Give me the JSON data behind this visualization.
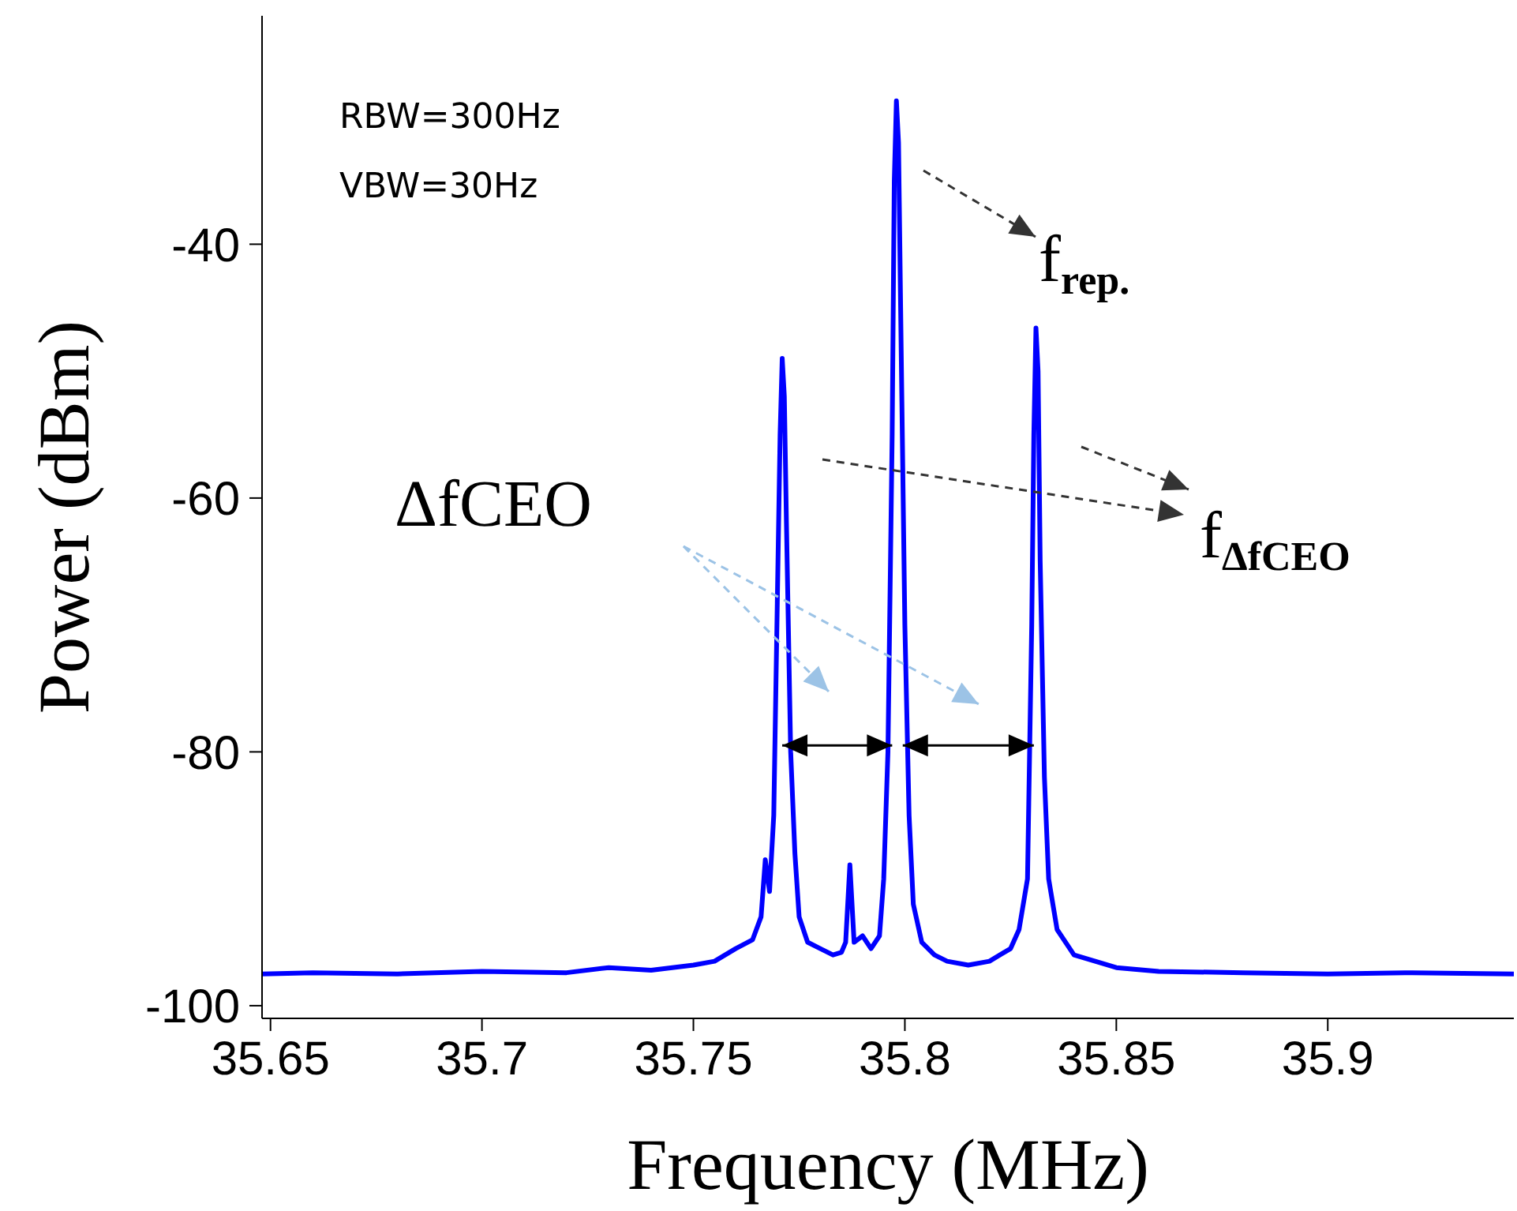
{
  "chart_data": {
    "type": "line",
    "xlabel": "Frequency (MHz)",
    "ylabel": "Power (dBm)",
    "x": [
      35.648,
      35.66,
      35.68,
      35.7,
      35.72,
      35.73,
      35.74,
      35.75,
      35.755,
      35.76,
      35.764,
      35.766,
      35.767,
      35.768,
      35.769,
      35.77,
      35.7705,
      35.771,
      35.7715,
      35.772,
      35.773,
      35.774,
      35.775,
      35.777,
      35.78,
      35.783,
      35.785,
      35.786,
      35.787,
      35.788,
      35.79,
      35.792,
      35.794,
      35.795,
      35.796,
      35.797,
      35.7975,
      35.798,
      35.7985,
      35.799,
      35.8,
      35.801,
      35.802,
      35.804,
      35.807,
      35.81,
      35.815,
      35.82,
      35.825,
      35.827,
      35.829,
      35.83,
      35.8305,
      35.831,
      35.8315,
      35.832,
      35.833,
      35.834,
      35.836,
      35.84,
      35.85,
      35.86,
      35.88,
      35.9,
      35.92,
      35.944
    ],
    "series": [
      {
        "color": "#0000ff",
        "values": [
          -97.5,
          -97.4,
          -97.5,
          -97.3,
          -97.4,
          -97.0,
          -97.2,
          -96.8,
          -96.5,
          -95.5,
          -94.8,
          -93,
          -88.5,
          -91,
          -85,
          -65,
          -55,
          -49,
          -52,
          -62,
          -80,
          -88,
          -93,
          -95,
          -95.5,
          -96,
          -95.8,
          -95,
          -88.9,
          -95,
          -94.5,
          -95.5,
          -94.5,
          -90,
          -80,
          -55,
          -35,
          -28.7,
          -32,
          -45,
          -70,
          -85,
          -92,
          -95,
          -96,
          -96.5,
          -96.8,
          -96.5,
          -95.5,
          -94,
          -90,
          -70,
          -55,
          -46.6,
          -50,
          -65,
          -82,
          -90,
          -94,
          -96,
          -97,
          -97.3,
          -97.4,
          -97.5,
          -97.4,
          -97.5
        ]
      }
    ],
    "xlim": [
      35.648,
      35.944
    ],
    "xticks": [
      35.65,
      35.7,
      35.75,
      35.8,
      35.85,
      35.9
    ],
    "ylim": [
      -101,
      -22
    ],
    "yticks": [
      -40,
      -60,
      -80,
      -100
    ],
    "annotations": [
      "RBW=300Hz",
      "VBW=30Hz",
      "f$_{rep.}$",
      "ΔfCEO",
      "f$_{ΔfCEO}$"
    ]
  }
}
